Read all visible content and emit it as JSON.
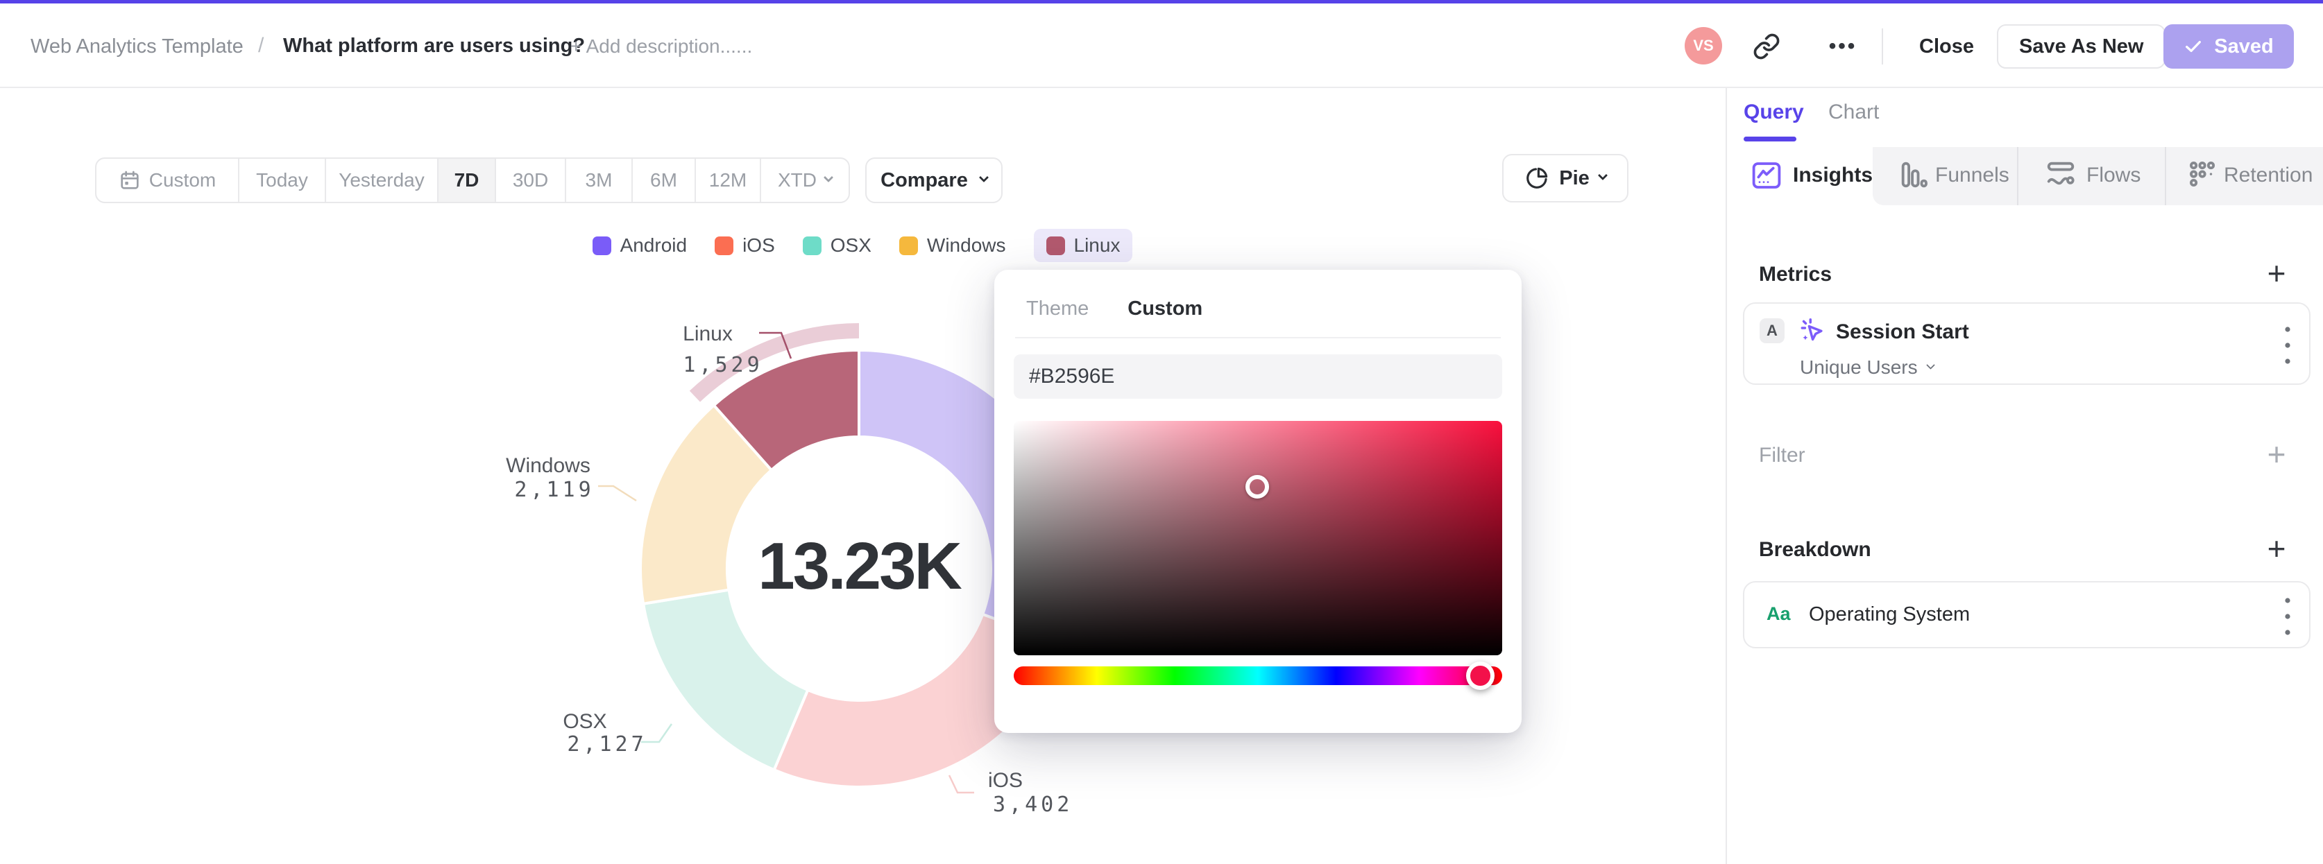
{
  "header": {
    "breadcrumb_root": "Web Analytics Template",
    "breadcrumb_separator": "/",
    "title": "What platform are users using?",
    "add_description": "+ Add description......",
    "avatar_initials": "VS",
    "ellipsis": "•••",
    "close_label": "Close",
    "save_as_new_label": "Save As New",
    "saved_label": "Saved",
    "accent_color": "#5642E8",
    "saved_button_color": "#ACA1EF",
    "avatar_color": "#F49A9B"
  },
  "controls": {
    "date_ranges": [
      {
        "label": "Custom"
      },
      {
        "label": "Today"
      },
      {
        "label": "Yesterday"
      },
      {
        "label": "7D",
        "selected": true
      },
      {
        "label": "30D"
      },
      {
        "label": "3M"
      },
      {
        "label": "6M"
      },
      {
        "label": "12M"
      },
      {
        "label": "XTD"
      }
    ],
    "compare_label": "Compare",
    "chart_type_label": "Pie"
  },
  "chart_data": {
    "type": "pie",
    "center_total": "13.23K",
    "total_value": 13230,
    "selected_slice": "Linux",
    "slices": [
      {
        "name": "Android",
        "value": 4053,
        "display": "",
        "color": "#7A5CF8",
        "pale": "#CFC4F7",
        "label_visible": false
      },
      {
        "name": "iOS",
        "value": 3402,
        "display": "3,402",
        "color": "#FB6E52",
        "pale": "#FBD2D3",
        "label_visible": true
      },
      {
        "name": "OSX",
        "value": 2127,
        "display": "2,127",
        "color": "#6EDCC8",
        "pale": "#D9F2EB",
        "label_visible": true
      },
      {
        "name": "Windows",
        "value": 2119,
        "display": "2,119",
        "color": "#F5B83D",
        "pale": "#FBE9C9",
        "label_visible": true
      },
      {
        "name": "Linux",
        "value": 1529,
        "display": "1,529",
        "color": "#B2596E",
        "pale": "#B2596E",
        "label_visible": true,
        "selected": true
      }
    ],
    "legend_position": "top-center",
    "selected_band_color": "#EACDD7"
  },
  "color_picker": {
    "tabs": [
      {
        "label": "Theme"
      },
      {
        "label": "Custom",
        "active": true
      }
    ],
    "hex_value": "#B2596E",
    "hue_knob_color": "#F3114A"
  },
  "sidebar": {
    "tabs": [
      {
        "label": "Query",
        "active": true
      },
      {
        "label": "Chart"
      }
    ],
    "view_tabs": [
      {
        "label": "Insights",
        "active": true
      },
      {
        "label": "Funnels"
      },
      {
        "label": "Flows"
      },
      {
        "label": "Retention"
      }
    ],
    "metrics": {
      "heading": "Metrics",
      "add": "+",
      "series_badge": "A",
      "event_name": "Session Start",
      "aggregation": "Unique Users"
    },
    "filter": {
      "heading": "Filter",
      "add": "+"
    },
    "breakdown": {
      "heading": "Breakdown",
      "add": "+",
      "property_icon": "Aa",
      "property_name": "Operating System"
    }
  }
}
